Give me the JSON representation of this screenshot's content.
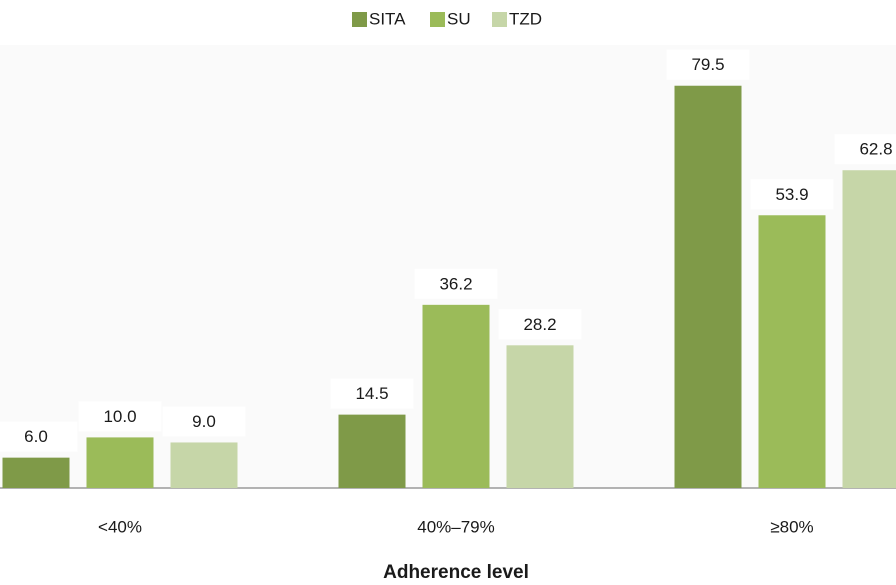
{
  "chart_data": {
    "type": "bar",
    "x_label": "Adherence level",
    "categories": [
      "<40%",
      "40%–79%",
      "≥80%"
    ],
    "series": [
      {
        "name": "SITA",
        "color": "#7f9a48",
        "values": [
          6.0,
          14.5,
          79.5
        ],
        "value_labels": [
          "6.0",
          "14.5",
          "79.5"
        ]
      },
      {
        "name": "SU",
        "color": "#9bbb59",
        "values": [
          10.0,
          36.2,
          53.9
        ],
        "value_labels": [
          "10.0",
          "36.2",
          "53.9"
        ]
      },
      {
        "name": "TZD",
        "color": "#c6d6a8",
        "values": [
          9.0,
          28.2,
          62.8
        ],
        "value_labels": [
          "9.0",
          "28.2",
          "62.8"
        ]
      }
    ],
    "legend": "top"
  }
}
